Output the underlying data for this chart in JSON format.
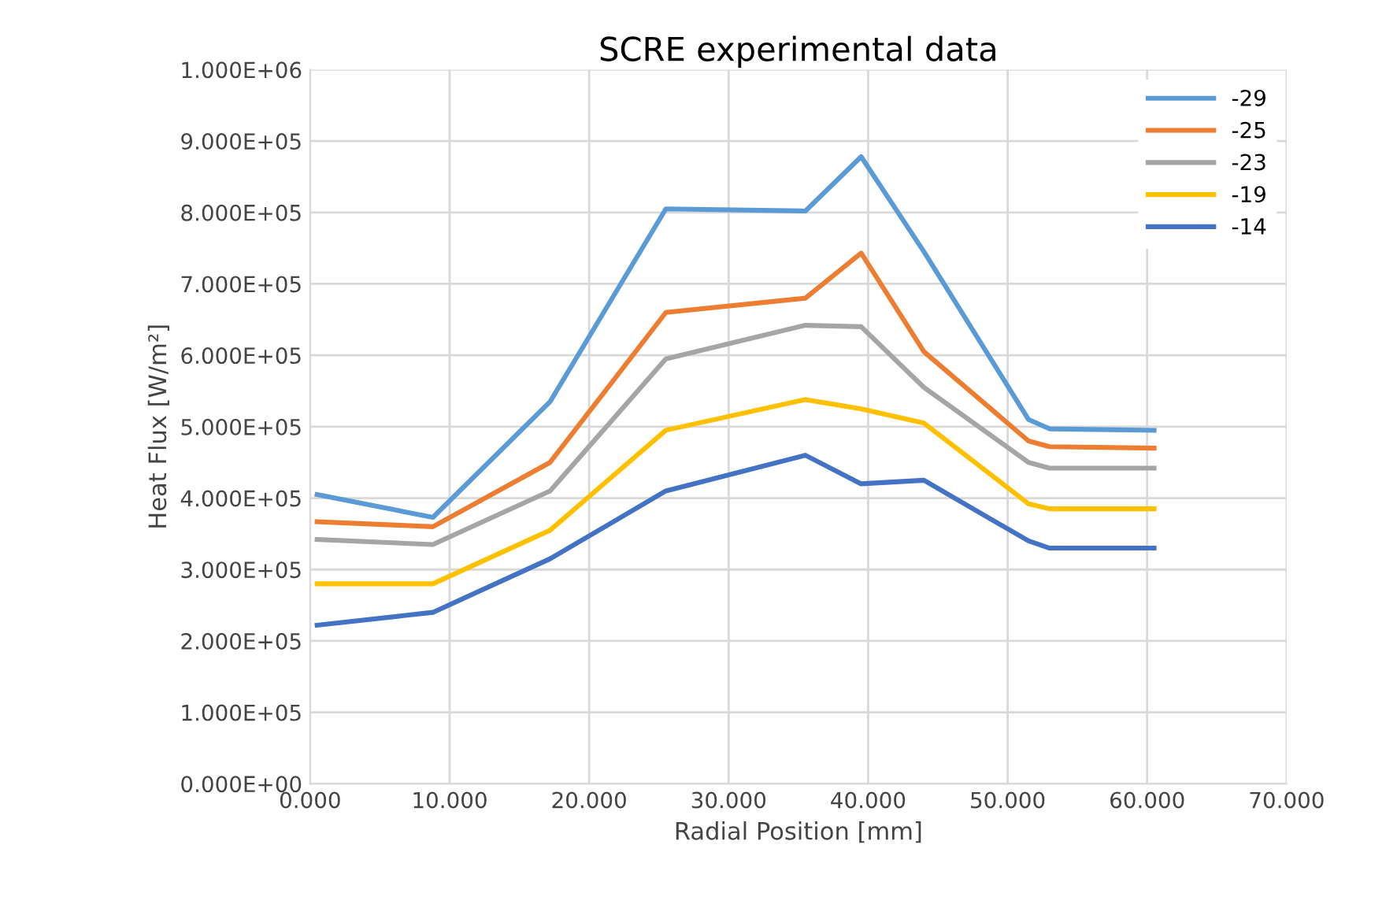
{
  "chart_data": {
    "type": "line",
    "title": "SCRE experimental data",
    "xlabel": "Radial Position [mm]",
    "ylabel": "Heat Flux [W/m²]",
    "x": [
      0.5,
      8.8,
      17.2,
      25.5,
      35.5,
      39.5,
      44,
      51.5,
      53,
      60.5
    ],
    "series": [
      {
        "name": "-29",
        "color": "#5b9bd5",
        "values": [
          405000,
          373000,
          535000,
          805000,
          802000,
          878000,
          745000,
          510000,
          497000,
          495000
        ]
      },
      {
        "name": "-25",
        "color": "#ed7d31",
        "values": [
          367000,
          360000,
          450000,
          660000,
          680000,
          743000,
          605000,
          480000,
          472000,
          470000
        ]
      },
      {
        "name": "-23",
        "color": "#a5a5a5",
        "values": [
          342000,
          335000,
          410000,
          595000,
          642000,
          640000,
          555000,
          450000,
          442000,
          442000
        ]
      },
      {
        "name": "-19",
        "color": "#ffc000",
        "values": [
          280000,
          280000,
          355000,
          495000,
          538000,
          525000,
          505000,
          392000,
          385000,
          385000
        ]
      },
      {
        "name": "-14",
        "color": "#4472c4",
        "values": [
          222000,
          240000,
          315000,
          410000,
          460000,
          420000,
          425000,
          340000,
          330000,
          330000
        ]
      }
    ],
    "xlim": [
      0,
      70
    ],
    "xticks": [
      {
        "value": 0,
        "label": "0.000"
      },
      {
        "value": 10,
        "label": "10.000"
      },
      {
        "value": 20,
        "label": "20.000"
      },
      {
        "value": 30,
        "label": "30.000"
      },
      {
        "value": 40,
        "label": "40.000"
      },
      {
        "value": 50,
        "label": "50.000"
      },
      {
        "value": 60,
        "label": "60.000"
      },
      {
        "value": 70,
        "label": "70.000"
      }
    ],
    "ylim": [
      0,
      1000000
    ],
    "yticks": [
      {
        "value": 0,
        "label": "0.000E+00"
      },
      {
        "value": 100000,
        "label": "1.000E+05"
      },
      {
        "value": 200000,
        "label": "2.000E+05"
      },
      {
        "value": 300000,
        "label": "3.000E+05"
      },
      {
        "value": 400000,
        "label": "4.000E+05"
      },
      {
        "value": 500000,
        "label": "5.000E+05"
      },
      {
        "value": 600000,
        "label": "6.000E+05"
      },
      {
        "value": 700000,
        "label": "7.000E+05"
      },
      {
        "value": 800000,
        "label": "8.000E+05"
      },
      {
        "value": 900000,
        "label": "9.000E+05"
      },
      {
        "value": 1000000,
        "label": "1.000E+06"
      }
    ],
    "grid": true,
    "legend": "top right",
    "marker": "none",
    "line_style": "solid"
  }
}
